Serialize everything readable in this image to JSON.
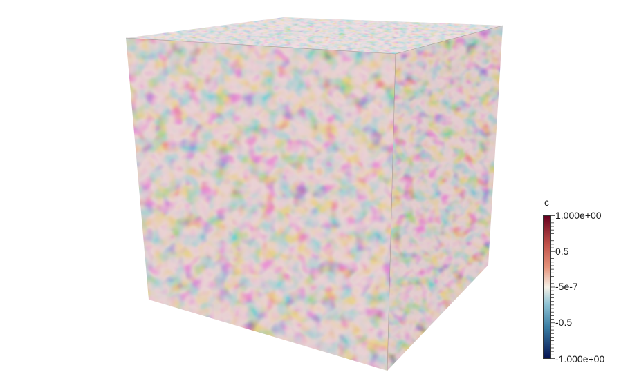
{
  "colorbar": {
    "title": "c",
    "max_label": "1.000e+00",
    "upper_mid_label": "0.5",
    "mid_label": "-5e-7",
    "lower_mid_label": "-0.5",
    "min_label": "-1.000e+00",
    "colors": {
      "max": "#67001f",
      "upper": "#c0524a",
      "upper_mid": "#e5937b",
      "center": "#f4f0e6",
      "lower_mid": "#8fc3d4",
      "lower": "#3b7ea4",
      "min": "#051352"
    }
  },
  "scene": {
    "object": "cube-volume",
    "field_name": "c",
    "colormap": "cool-to-warm-diverging"
  }
}
